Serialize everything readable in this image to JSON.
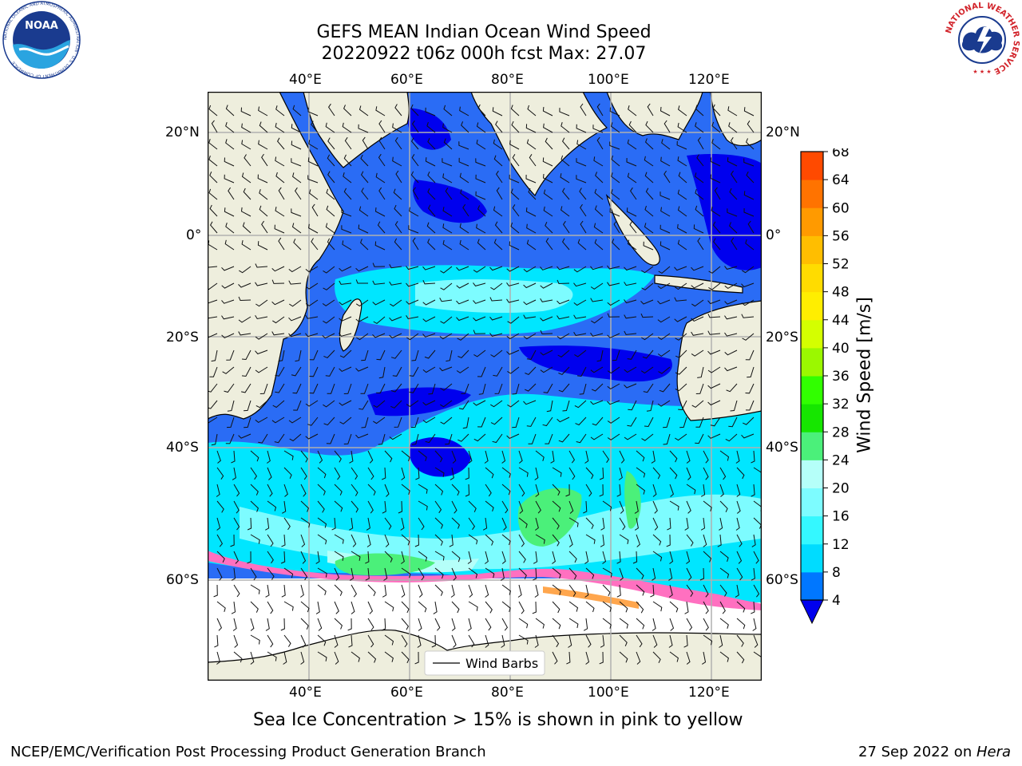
{
  "title": {
    "line1": "GEFS MEAN Indian Ocean Wind Speed",
    "line2": "20220922 t06z 000h fcst   Max: 27.07"
  },
  "logos": {
    "noaa_text": "NOAA",
    "noaa_ring_text": "NATIONAL OCEANIC AND ATMOSPHERIC ADMINISTRATION · U.S. DEPARTMENT OF COMMERCE",
    "nws_ring_text": "NATIONAL WEATHER SERVICE"
  },
  "map": {
    "lon_labels": [
      "40°E",
      "60°E",
      "80°E",
      "100°E",
      "120°E"
    ],
    "lat_labels": [
      "20°N",
      "0°",
      "20°S",
      "40°S",
      "60°S"
    ],
    "legend_label": "Wind Barbs"
  },
  "colorbar": {
    "label": "Wind Speed [m/s]",
    "ticks": [
      "4",
      "8",
      "12",
      "16",
      "20",
      "24",
      "28",
      "32",
      "36",
      "40",
      "44",
      "48",
      "52",
      "56",
      "60",
      "64",
      "68"
    ],
    "colors": [
      "#0077ff",
      "#00dcff",
      "#34f8ff",
      "#7dfcff",
      "#b5fff9",
      "#4bf07a",
      "#16e600",
      "#31ff00",
      "#9bf800",
      "#d4ff00",
      "#ffee00",
      "#ffdc00",
      "#ffbe00",
      "#ff9a00",
      "#ff7300",
      "#ff4a00",
      "#ff1600"
    ],
    "under_color": "#0000ee"
  },
  "caption": "Sea Ice Concentration > 15% is shown in pink to yellow",
  "footer": {
    "left": "NCEP/EMC/Verification Post Processing Product Generation Branch",
    "right_prefix": "27 Sep 2022 on ",
    "right_host": "Hera"
  }
}
